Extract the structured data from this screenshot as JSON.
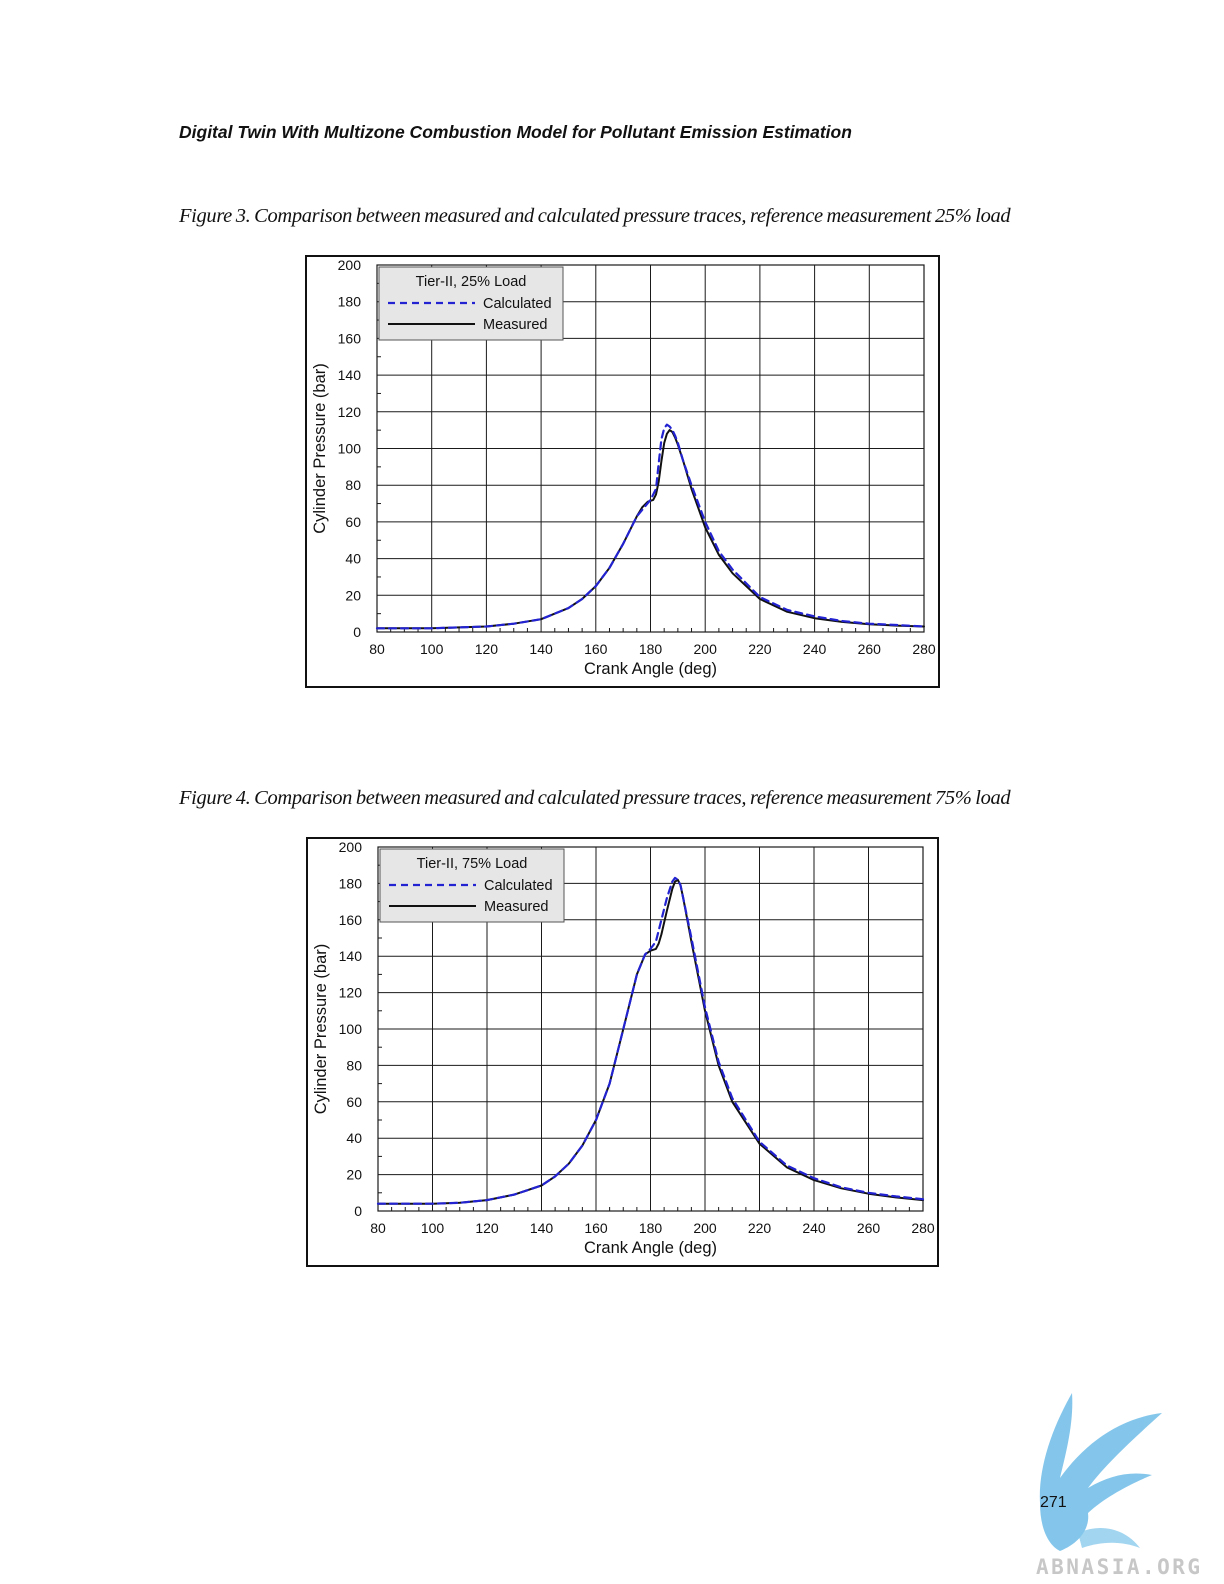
{
  "header": {
    "running_title": "Digital Twin With Multizone Combustion Model for Pollutant Emission Estimation"
  },
  "figures": [
    {
      "caption": "Figure 3. Comparison between measured and calculated pressure traces, reference measurement 25% load"
    },
    {
      "caption": "Figure 4. Comparison between measured and calculated pressure traces, reference measurement 75% load"
    }
  ],
  "colors": {
    "calculated": "#2323d2",
    "measured": "#111111",
    "legend_bg": "#e6e6e6",
    "grid": "#1a1a1a",
    "logo": "#7ec4ea"
  },
  "chart_data": [
    {
      "type": "line",
      "legend_title": "Tier-II, 25% Load",
      "legend_placement": "top-left",
      "xlabel": "Crank Angle (deg)",
      "ylabel": "Cylinder Pressure (bar)",
      "xlim": [
        80,
        280
      ],
      "ylim": [
        0,
        200
      ],
      "xticks": [
        80,
        100,
        120,
        140,
        160,
        180,
        200,
        220,
        240,
        260,
        280
      ],
      "yticks": [
        0,
        20,
        40,
        60,
        80,
        100,
        120,
        140,
        160,
        180,
        200
      ],
      "grid": true,
      "series": [
        {
          "name": "Calculated",
          "style": "dashed",
          "x": [
            80,
            100,
            120,
            130,
            140,
            150,
            155,
            160,
            165,
            170,
            175,
            180,
            182,
            183,
            184,
            185,
            186,
            187,
            188,
            189,
            190,
            192,
            195,
            200,
            205,
            210,
            220,
            230,
            240,
            250,
            260,
            270,
            280
          ],
          "y": [
            2,
            2,
            3,
            4.5,
            7,
            13,
            18,
            25,
            35,
            48,
            63,
            72,
            78,
            92,
            105,
            111,
            113,
            112,
            110,
            107,
            103,
            93,
            80,
            60,
            44,
            34,
            19,
            12,
            8.5,
            6,
            4.5,
            3.8,
            3
          ]
        },
        {
          "name": "Measured",
          "style": "solid",
          "x": [
            80,
            100,
            120,
            130,
            140,
            150,
            155,
            160,
            165,
            170,
            175,
            177,
            179,
            181,
            182,
            183,
            184,
            185,
            186,
            187,
            188,
            189,
            190,
            192,
            195,
            200,
            205,
            210,
            220,
            230,
            240,
            250,
            260,
            270,
            280
          ],
          "y": [
            2,
            2,
            3,
            4.5,
            7,
            13,
            18,
            25,
            35,
            48,
            63,
            68,
            71,
            72,
            75,
            82,
            93,
            103,
            108,
            110,
            109,
            106,
            102,
            93,
            78,
            57,
            42,
            32,
            18,
            11,
            7.5,
            5.5,
            4.2,
            3.5,
            3
          ]
        }
      ]
    },
    {
      "type": "line",
      "legend_title": "Tier-II, 75% Load",
      "legend_placement": "top-left",
      "xlabel": "Crank Angle (deg)",
      "ylabel": "Cylinder Pressure (bar)",
      "xlim": [
        80,
        280
      ],
      "ylim": [
        0,
        200
      ],
      "xticks": [
        80,
        100,
        120,
        140,
        160,
        180,
        200,
        220,
        240,
        260,
        280
      ],
      "yticks": [
        0,
        20,
        40,
        60,
        80,
        100,
        120,
        140,
        160,
        180,
        200
      ],
      "grid": true,
      "series": [
        {
          "name": "Calculated",
          "style": "dashed",
          "x": [
            80,
            100,
            110,
            120,
            130,
            140,
            145,
            150,
            155,
            160,
            165,
            170,
            175,
            178,
            180,
            182,
            184,
            186,
            188,
            189,
            190,
            191,
            192,
            195,
            200,
            205,
            210,
            220,
            230,
            240,
            250,
            260,
            270,
            280
          ],
          "y": [
            4,
            4,
            4.5,
            6,
            9,
            14,
            19,
            26,
            36,
            50,
            70,
            100,
            130,
            141,
            144,
            148,
            160,
            172,
            181,
            183,
            182,
            179,
            172,
            150,
            112,
            82,
            62,
            38,
            25,
            18,
            13,
            10,
            8,
            6.5
          ]
        },
        {
          "name": "Measured",
          "style": "solid",
          "x": [
            80,
            100,
            110,
            120,
            130,
            140,
            145,
            150,
            155,
            160,
            165,
            170,
            175,
            178,
            180,
            182,
            183,
            184,
            186,
            188,
            189,
            190,
            191,
            192,
            195,
            200,
            205,
            210,
            220,
            230,
            240,
            250,
            260,
            270,
            280
          ],
          "y": [
            4,
            4,
            4.5,
            6,
            9,
            14,
            19,
            26,
            36,
            50,
            70,
            100,
            130,
            141,
            143,
            144,
            147,
            152,
            165,
            177,
            181,
            182,
            179,
            172,
            148,
            110,
            80,
            60,
            37,
            24,
            17,
            12.5,
            9.5,
            7.5,
            6
          ]
        }
      ]
    }
  ],
  "footer": {
    "page_number": "271",
    "logo_text": "ABNASIA.ORG"
  }
}
